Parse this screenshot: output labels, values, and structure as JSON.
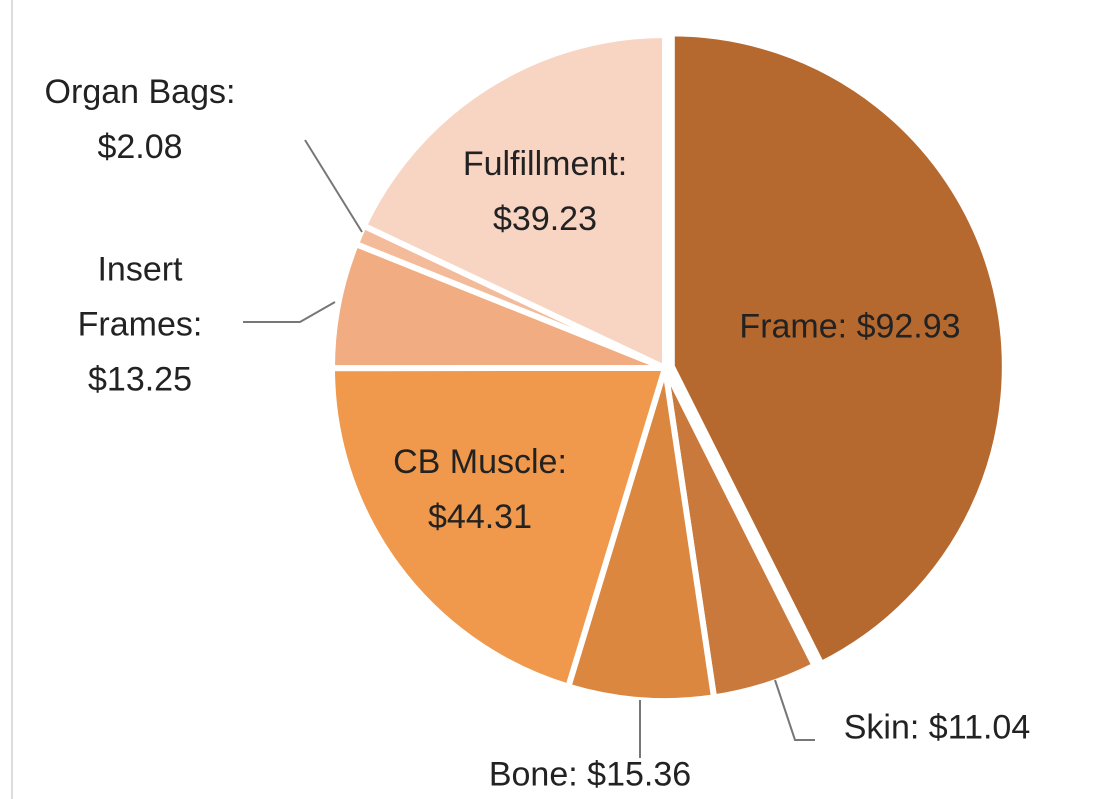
{
  "chart_data": {
    "type": "pie",
    "categories": [
      "Frame:",
      "Skin:",
      "Bone:",
      "CB Muscle:",
      "Insert Frames:",
      "Organ Bags:",
      "Fulfillment:"
    ],
    "values": [
      92.93,
      11.04,
      15.36,
      44.31,
      13.25,
      2.08,
      39.23
    ],
    "value_labels": [
      "$92.93",
      "$11.04",
      "$15.36",
      "$44.31",
      "$13.25",
      "$2.08",
      "$39.23"
    ],
    "colors": [
      "#b5692f",
      "#c9793c",
      "#dc873f",
      "#f0984b",
      "#f2ac82",
      "#f4bb9b",
      "#f8d4c3"
    ]
  }
}
